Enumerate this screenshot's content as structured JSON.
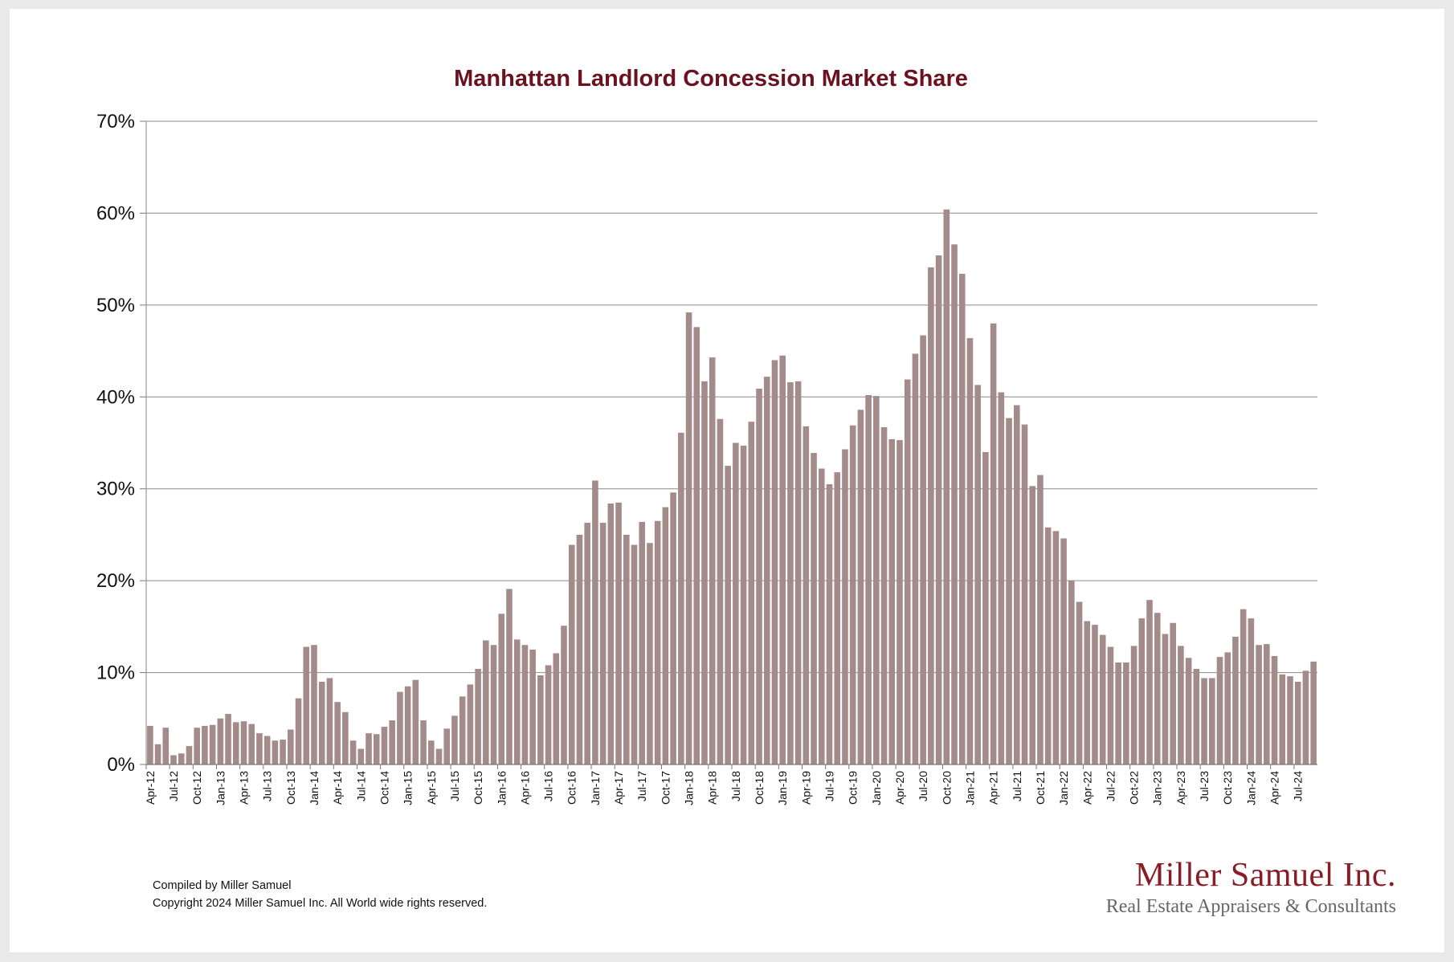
{
  "chart_data": {
    "type": "bar",
    "title": "Manhattan Landlord Concession Market Share",
    "xlabel": "",
    "ylabel": "",
    "ylim": [
      0,
      70
    ],
    "yticks": [
      "0%",
      "10%",
      "20%",
      "30%",
      "40%",
      "50%",
      "60%",
      "70%"
    ],
    "grid": true,
    "bar_color": "#a38b89",
    "gridline_color": "#8a8a8a",
    "title_color": "#6b1220",
    "start_month": "Apr-12",
    "x_tick_labels": [
      "Apr-12",
      "Jul-12",
      "Oct-12",
      "Jan-13",
      "Apr-13",
      "Jul-13",
      "Oct-13",
      "Jan-14",
      "Apr-14",
      "Jul-14",
      "Oct-14",
      "Jan-15",
      "Apr-15",
      "Jul-15",
      "Oct-15",
      "Jan-16",
      "Apr-16",
      "Jul-16",
      "Oct-16",
      "Jan-17",
      "Apr-17",
      "Jul-17",
      "Oct-17",
      "Jan-18",
      "Apr-18",
      "Jul-18",
      "Oct-18",
      "Jan-19",
      "Apr-19",
      "Jul-19",
      "Oct-19",
      "Jan-20",
      "Apr-20",
      "Jul-20",
      "Oct-20",
      "Jan-21",
      "Apr-21",
      "Jul-21",
      "Oct-21",
      "Jan-22",
      "Apr-22",
      "Jul-22",
      "Oct-22",
      "Jan-23",
      "Apr-23",
      "Jul-23",
      "Oct-23",
      "Jan-24",
      "Apr-24",
      "Jul-24"
    ],
    "values": [
      4.2,
      2.2,
      4.0,
      1.0,
      1.2,
      2.0,
      4.0,
      4.2,
      4.3,
      5.0,
      5.5,
      4.6,
      4.7,
      4.4,
      3.4,
      3.1,
      2.6,
      2.7,
      3.8,
      7.2,
      12.8,
      13.0,
      9.0,
      9.4,
      6.8,
      5.7,
      2.6,
      1.7,
      3.4,
      3.3,
      4.1,
      4.8,
      7.9,
      8.5,
      9.2,
      4.8,
      2.6,
      1.7,
      3.9,
      5.3,
      7.4,
      8.7,
      10.4,
      13.5,
      13.0,
      16.4,
      19.1,
      13.6,
      13.0,
      12.5,
      9.7,
      10.8,
      12.1,
      15.1,
      23.9,
      25.0,
      26.3,
      30.9,
      26.3,
      28.4,
      28.5,
      25.0,
      23.9,
      26.4,
      24.1,
      26.5,
      28.0,
      29.6,
      36.1,
      49.2,
      47.6,
      41.7,
      44.3,
      37.6,
      32.5,
      35.0,
      34.7,
      37.3,
      40.9,
      42.2,
      44.0,
      44.5,
      41.6,
      41.7,
      36.8,
      33.9,
      32.2,
      30.5,
      31.8,
      34.3,
      36.9,
      38.6,
      40.2,
      40.1,
      36.7,
      35.4,
      35.3,
      41.9,
      44.7,
      46.7,
      54.1,
      55.4,
      60.4,
      56.6,
      53.4,
      46.4,
      41.3,
      34.0,
      48.0,
      40.5,
      37.7,
      39.1,
      37.0,
      30.3,
      31.5,
      25.8,
      25.4,
      24.6,
      20.0,
      17.7,
      15.6,
      15.2,
      14.1,
      12.8,
      11.1,
      11.1,
      12.9,
      15.9,
      17.9,
      16.5,
      14.2,
      15.4,
      12.9,
      11.6,
      10.4,
      9.4,
      9.4,
      11.7,
      12.2,
      13.9,
      16.9,
      15.9,
      13.0,
      13.1,
      11.8,
      9.8,
      9.6,
      9.0,
      10.2,
      11.2
    ]
  },
  "footer": {
    "compiled_by": "Compiled by Miller Samuel",
    "copyright": "Copyright 2024 Miller Samuel Inc.  All World wide rights reserved."
  },
  "logo": {
    "name": "Miller Samuel Inc.",
    "tagline": "Real Estate Appraisers & Consultants",
    "color": "#8a1c26"
  }
}
